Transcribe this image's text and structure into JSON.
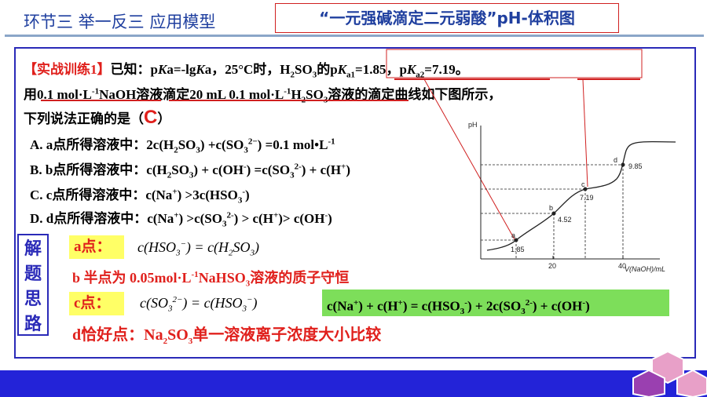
{
  "header": {
    "section": "环节三  举一反三 应用模型",
    "title": "“一元强碱滴定二元弱酸”pH-体积图"
  },
  "problem": {
    "line1": [
      "【实战训练1】",
      "已知：p",
      "K",
      "a=-lg",
      "K",
      "a，25°C时，H",
      "2",
      "SO",
      "3",
      "的p",
      "K",
      "a1",
      "=1.85，p",
      "K",
      "a2",
      "=7.19。"
    ],
    "line2": [
      "用",
      "0.1 mol·L",
      "-1",
      "NaOH溶液滴定20 mL 0.1 mol·L",
      "-1",
      "H",
      "2",
      "SO",
      "3",
      "溶液的滴定曲线如下图所示，"
    ],
    "line3": [
      "下列说法正确的是（",
      "C",
      "）"
    ],
    "optA": [
      "A. a点所得溶液中：2c(H",
      "2",
      "SO",
      "3",
      ") +c(SO",
      "3",
      "2−",
      ") =0.1 mol•L",
      "-1"
    ],
    "optB": [
      "B. b点所得溶液中：c(H",
      "2",
      "SO",
      "3",
      ") + c(OH",
      "-",
      ") =c(SO",
      "3",
      "2-",
      ") + c(H",
      "+",
      ")"
    ],
    "optC": [
      "C. c点所得溶液中：c(Na",
      "+",
      ") >3c(HSO",
      "3",
      "-",
      ")"
    ],
    "optD": [
      "D. d点所得溶液中：c(Na",
      "+",
      ") >c(SO",
      "3",
      "2-",
      ") > c(H",
      "+",
      ")> c(OH",
      "-",
      ")"
    ]
  },
  "solution": {
    "sidebar": "解题思路",
    "aLabel": "a点：",
    "aText": [
      "c(HSO",
      "3",
      "−",
      ") =  c(H",
      "2",
      "SO",
      "3",
      ")"
    ],
    "bText": [
      "b 半点为 0.05mol·L",
      "-1",
      "NaHSO",
      "3",
      "溶液的质子守恒"
    ],
    "cLabel": "c点：",
    "cText": [
      "c(SO",
      "3",
      "2−",
      ") =  c(HSO",
      "3",
      "−",
      ")"
    ],
    "cGreen": [
      "c(Na",
      "+",
      ") + c(H",
      "+",
      ") = c(HSO",
      "3",
      "-",
      ") + 2c(SO",
      "3",
      "2-",
      ") + c(OH",
      "-",
      ")"
    ],
    "dText": [
      "d恰好点：Na",
      "2",
      "SO",
      "3",
      "单一溶液离子浓度大小比较"
    ]
  },
  "figure": {
    "yLabel": "pH",
    "xLabel": "V(NaOH)/mL",
    "points": [
      "a",
      "b",
      "c",
      "d"
    ],
    "pointValues": [
      "1.85",
      "4.52",
      "7.19",
      "9.85"
    ],
    "xTicks": [
      "20",
      "40"
    ]
  }
}
